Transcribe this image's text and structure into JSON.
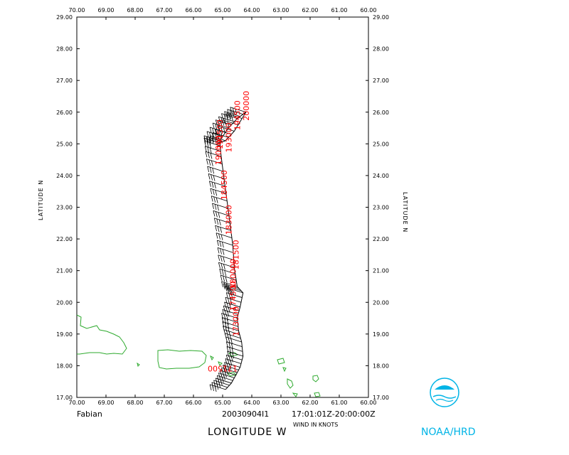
{
  "map": {
    "storm_name": "Fabian",
    "flight_id": "20030904I1",
    "time_range": "17:01:01Z-20:00:00Z",
    "wind_units": "WIND IN KNOTS",
    "xlabel": "LONGITUDE   W",
    "ylabel_left": "LATITUDE   N",
    "ylabel_right": "LATITUDE   N",
    "organization": "NOAA/HRD",
    "lon_ticks": [
      "70.00",
      "69.00",
      "68.00",
      "67.00",
      "66.00",
      "65.00",
      "64.00",
      "63.00",
      "62.00",
      "61.00",
      "60.00"
    ],
    "lat_ticks": [
      "29.00",
      "28.00",
      "27.00",
      "26.00",
      "25.00",
      "24.00",
      "23.00",
      "22.00",
      "21.00",
      "20.00",
      "19.00",
      "18.00",
      "17.00"
    ],
    "xlim": [
      70,
      60
    ],
    "ylim": [
      17,
      29
    ],
    "colors": {
      "track": "#000000",
      "time_labels": "#ff0000",
      "coast": "#2eaa2e",
      "logo": "#00b4e6"
    }
  },
  "track": [
    {
      "lon": 64.9,
      "lat": 17.25
    },
    {
      "lon": 64.7,
      "lat": 17.45
    },
    {
      "lon": 64.55,
      "lat": 17.7
    },
    {
      "lon": 64.4,
      "lat": 17.95
    },
    {
      "lon": 64.3,
      "lat": 18.3
    },
    {
      "lon": 64.35,
      "lat": 18.75
    },
    {
      "lon": 64.45,
      "lat": 19.1
    },
    {
      "lon": 64.5,
      "lat": 19.5
    },
    {
      "lon": 64.4,
      "lat": 19.85
    },
    {
      "lon": 64.3,
      "lat": 20.3
    },
    {
      "lon": 64.5,
      "lat": 20.5
    },
    {
      "lon": 64.6,
      "lat": 21.1
    },
    {
      "lon": 64.65,
      "lat": 21.8
    },
    {
      "lon": 64.75,
      "lat": 22.5
    },
    {
      "lon": 64.85,
      "lat": 23.2
    },
    {
      "lon": 64.95,
      "lat": 23.9
    },
    {
      "lon": 65.05,
      "lat": 24.6
    },
    {
      "lon": 65.1,
      "lat": 25.1
    },
    {
      "lon": 64.8,
      "lat": 25.5
    },
    {
      "lon": 64.5,
      "lat": 25.8
    },
    {
      "lon": 64.2,
      "lat": 26.0
    },
    {
      "lon": 64.6,
      "lat": 25.4
    },
    {
      "lon": 64.9,
      "lat": 25.1
    },
    {
      "lon": 65.2,
      "lat": 25.0
    }
  ],
  "time_labels": [
    {
      "text": "171500",
      "lon": 65.0,
      "lat": 18.0,
      "rot": 180
    },
    {
      "text": "173000",
      "lon": 64.45,
      "lat": 19.4,
      "rot": -90
    },
    {
      "text": "174500",
      "lon": 64.55,
      "lat": 20.2,
      "rot": -90
    },
    {
      "text": "180000",
      "lon": 64.55,
      "lat": 20.9,
      "rot": -90
    },
    {
      "text": "181500",
      "lon": 64.45,
      "lat": 21.5,
      "rot": -90
    },
    {
      "text": "183000",
      "lon": 64.7,
      "lat": 22.6,
      "rot": -90
    },
    {
      "text": "184500",
      "lon": 64.85,
      "lat": 23.7,
      "rot": -90
    },
    {
      "text": "190000",
      "lon": 65.05,
      "lat": 24.8,
      "rot": -90
    },
    {
      "text": "191500",
      "lon": 65.0,
      "lat": 25.3,
      "rot": -90
    },
    {
      "text": "193000",
      "lon": 64.7,
      "lat": 25.2,
      "rot": -90
    },
    {
      "text": "194500",
      "lon": 64.4,
      "lat": 25.9,
      "rot": -90
    },
    {
      "text": "200000",
      "lon": 64.1,
      "lat": 26.2,
      "rot": -90
    }
  ]
}
